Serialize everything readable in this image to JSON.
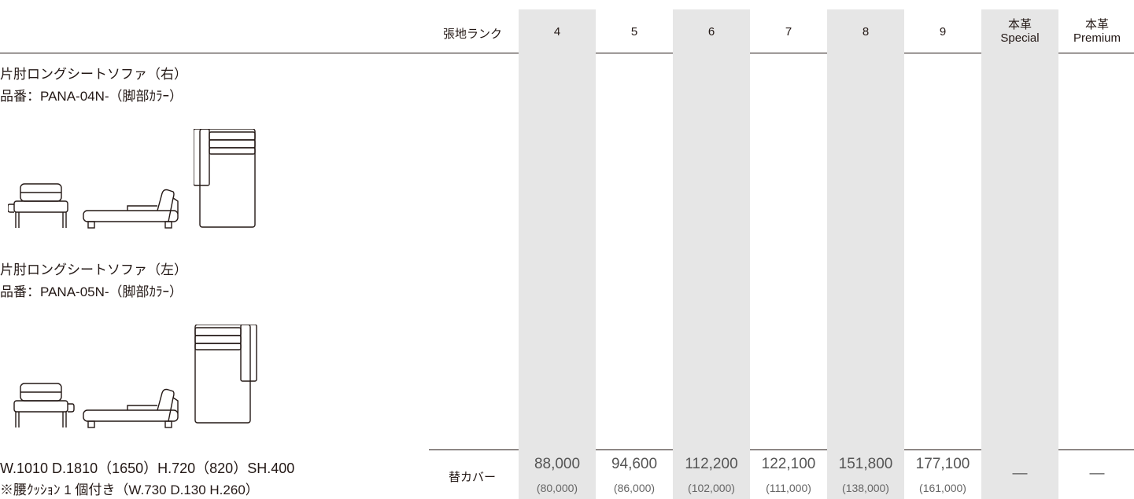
{
  "table": {
    "header": {
      "label": "張地ランク",
      "columns": [
        [
          "4"
        ],
        [
          "5"
        ],
        [
          "6"
        ],
        [
          "7"
        ],
        [
          "8"
        ],
        [
          "9"
        ],
        [
          "本革",
          "Special"
        ],
        [
          "本革",
          "Premium"
        ]
      ]
    },
    "products": [
      {
        "name": "片肘ロングシートソファ（右）",
        "code": "品番：PANA-04N-（脚部ｶﾗｰ）"
      },
      {
        "name": "片肘ロングシートソファ（左）",
        "code": "品番：PANA-05N-（脚部ｶﾗｰ）"
      }
    ],
    "size": [
      "W.1010  D.1810（1650）H.720（820）SH.400",
      "※腰ｸｯｼｮﾝ 1 個付き（W.730 D.130 H.260）"
    ],
    "price_row": {
      "label": "替カバー",
      "cells": [
        {
          "price": "88,000",
          "base": "(80,000)"
        },
        {
          "price": "94,600",
          "base": "(86,000)"
        },
        {
          "price": "112,200",
          "base": "(102,000)"
        },
        {
          "price": "122,100",
          "base": "(111,000)"
        },
        {
          "price": "151,800",
          "base": "(138,000)"
        },
        {
          "price": "177,100",
          "base": "(161,000)"
        },
        {
          "price": "—"
        },
        {
          "price": "—"
        }
      ]
    }
  }
}
